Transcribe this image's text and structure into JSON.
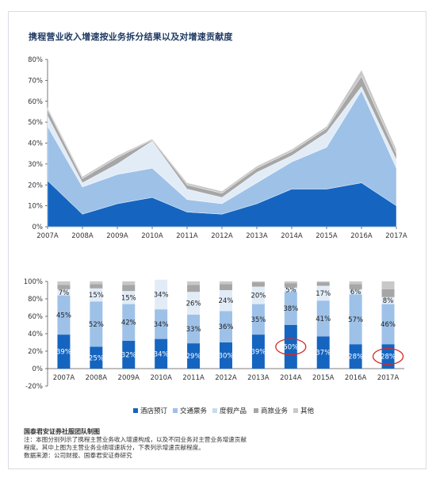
{
  "title": "携程营业收入增速按业务拆分结果以及对增速贡献度",
  "colors": {
    "hotel": "#1565c0",
    "transport": "#9ec1e8",
    "vacation": "#e2ecf7",
    "business": "#a6a6a6",
    "other": "#c8c8c8",
    "highlight_circle": "#d62828"
  },
  "chart_data": [
    {
      "type": "area",
      "stacked": true,
      "title": "携程营业收入增速按业务拆分结果以及对增速贡献度",
      "categories": [
        "2007A",
        "2008A",
        "2009A",
        "2010A",
        "2011A",
        "2012A",
        "2013A",
        "2014A",
        "2015A",
        "2016A",
        "2017A"
      ],
      "ylim": [
        0,
        80
      ],
      "yticks": [
        "0%",
        "10%",
        "20%",
        "30%",
        "40%",
        "50%",
        "60%",
        "70%",
        "80%"
      ],
      "grid": false,
      "series": [
        {
          "values": [
            22,
            6,
            11,
            14,
            7,
            6,
            11,
            18,
            18,
            21,
            10
          ]
        },
        {
          "values": [
            26,
            13,
            14,
            14,
            6,
            5,
            10,
            13,
            20,
            44,
            18
          ]
        },
        {
          "values": [
            5,
            2,
            5,
            13,
            5,
            3,
            5,
            3,
            7,
            2,
            4
          ]
        },
        {
          "values": [
            3,
            2,
            3,
            0.5,
            2,
            2,
            2,
            2,
            2,
            5,
            3
          ]
        },
        {
          "values": [
            1,
            1,
            1,
            0.5,
            1,
            1,
            1,
            1,
            1,
            3,
            2
          ]
        }
      ]
    },
    {
      "type": "bar",
      "stacked": true,
      "categories": [
        "2007A",
        "2008A",
        "2009A",
        "2010A",
        "2011A",
        "2012A",
        "2013A",
        "2014A",
        "2015A",
        "2016A",
        "2017A"
      ],
      "ylim": [
        -20,
        100
      ],
      "yticks": [
        "-20%",
        "0%",
        "20%",
        "40%",
        "60%",
        "80%",
        "100%"
      ],
      "legend_position": "bottom",
      "series": [
        {
          "name": "酒店预订",
          "values": [
            39,
            25,
            32,
            34,
            29,
            30,
            39,
            50,
            37,
            28,
            28
          ],
          "labels": [
            "39%",
            "25%",
            "32%",
            "34%",
            "29%",
            "30%",
            "39%",
            "50%",
            "37%",
            "28%",
            "28%"
          ]
        },
        {
          "name": "交通票务",
          "values": [
            45,
            52,
            42,
            34,
            33,
            36,
            35,
            38,
            41,
            57,
            46
          ],
          "labels": [
            "45%",
            "52%",
            "42%",
            "34%",
            "33%",
            "36%",
            "35%",
            "38%",
            "41%",
            "57%",
            "46%"
          ]
        },
        {
          "name": "度假产品",
          "values": [
            7,
            15,
            15,
            34,
            26,
            24,
            20,
            5,
            17,
            6,
            8
          ],
          "labels": [
            "7%",
            "15%",
            "15%",
            "34%",
            "26%",
            "24%",
            "20%",
            "5%",
            "17%",
            "6%",
            "8%"
          ]
        },
        {
          "name": "商旅业务",
          "values": [
            5,
            5,
            7,
            0,
            8,
            7,
            5,
            5,
            4,
            6,
            9
          ]
        },
        {
          "name": "其他",
          "values": [
            4,
            3,
            4,
            0,
            4,
            3,
            1,
            2,
            1,
            3,
            9
          ]
        }
      ],
      "highlighted": [
        "2014A",
        "2017A"
      ]
    }
  ],
  "notes": {
    "source_title": "国泰君安证券社服团队制图",
    "line1": "注：本图分别列示了携程主营业务收入增速构成，以及不同业务对主营业务增速贡献",
    "line2": "程度。其中上图为主营业务业绩增速拆分，下表列示增速贡献程度。",
    "line3": "数据来源：公司财报、国泰君安证券研究"
  }
}
